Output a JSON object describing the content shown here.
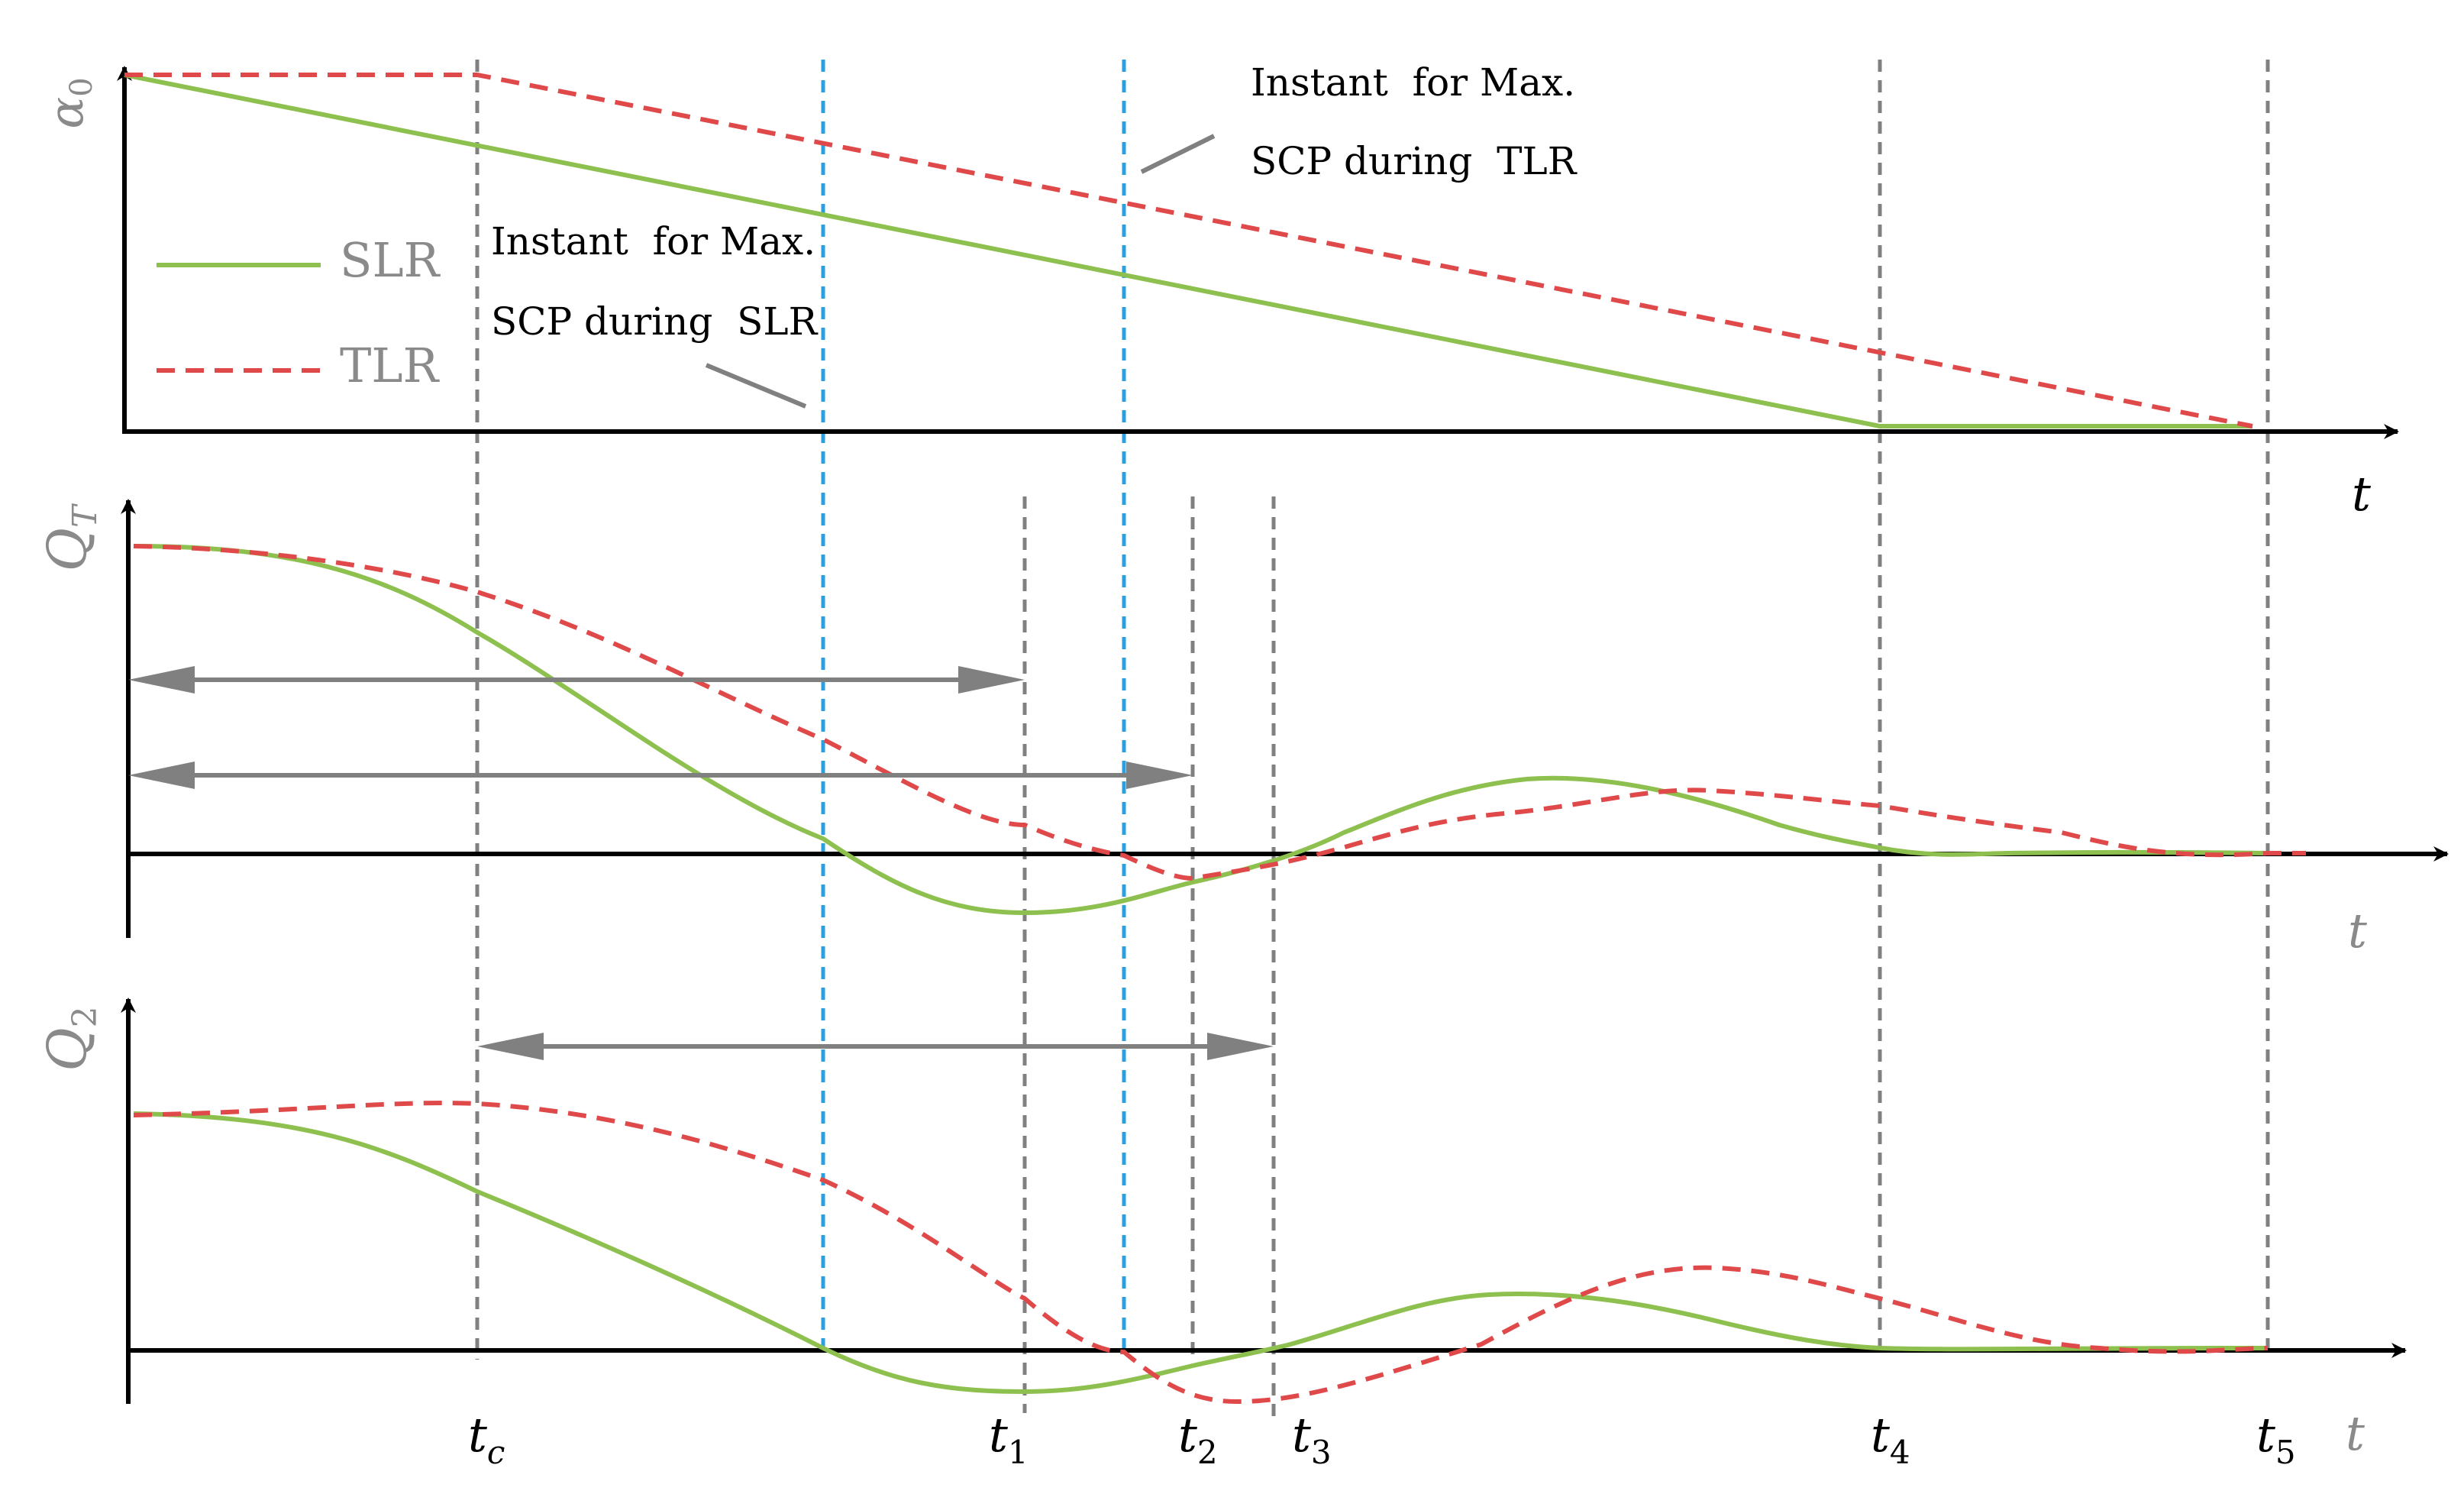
{
  "colors": {
    "slr": "#8dc04e",
    "tlr": "#e0494a",
    "axis": "#000000",
    "guide_gray": "#808080",
    "guide_blue": "#2aa0e0",
    "axis_label_gray": "#8a8a8a"
  },
  "panels": [
    {
      "ylabel": "α",
      "ylabel_sub": "0",
      "xlabel": "t"
    },
    {
      "ylabel": "Q",
      "ylabel_sub": "T",
      "xlabel": "t"
    },
    {
      "ylabel": "Q",
      "ylabel_sub": "2",
      "xlabel": "t"
    }
  ],
  "legend": [
    {
      "label": "SLR",
      "style": "solid",
      "color": "#8dc04e"
    },
    {
      "label": "TLR",
      "style": "dashed",
      "color": "#e0494a"
    }
  ],
  "annotations": {
    "tlr_line1": "Instant  for Max.",
    "tlr_line2": "SCP during  TLR",
    "slr_line1": "Instant  for Max.",
    "slr_line2": "SCP during  SLR"
  },
  "time_markers": [
    {
      "base": "t",
      "sub": "c"
    },
    {
      "base": "t",
      "sub": "1"
    },
    {
      "base": "t",
      "sub": "2"
    },
    {
      "base": "t",
      "sub": "3"
    },
    {
      "base": "t",
      "sub": "4"
    },
    {
      "base": "t",
      "sub": "5"
    }
  ]
}
